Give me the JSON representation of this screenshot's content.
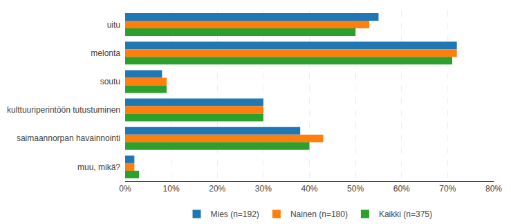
{
  "chart_data": {
    "type": "bar",
    "orientation": "horizontal",
    "categories": [
      "uitu",
      "melonta",
      "soutu",
      "kulttuuriperintöön tutustuminen",
      "saimaannorpan havainnointi",
      "muu, mikä?"
    ],
    "series": [
      {
        "name": "Mies (n=192)",
        "values": [
          55,
          72,
          8,
          30,
          38,
          2
        ]
      },
      {
        "name": "Nainen (n=180)",
        "values": [
          53,
          72,
          9,
          30,
          43,
          2
        ]
      },
      {
        "name": "Kaikki (n=375)",
        "values": [
          50,
          71,
          9,
          30,
          40,
          3
        ]
      }
    ],
    "xlim": [
      0,
      80
    ],
    "xticks": [
      {
        "value": 0,
        "label": "0%"
      },
      {
        "value": 10,
        "label": "10%"
      },
      {
        "value": 20,
        "label": "20%"
      },
      {
        "value": 30,
        "label": "30%"
      },
      {
        "value": 40,
        "label": "40%"
      },
      {
        "value": 50,
        "label": "50%"
      },
      {
        "value": 60,
        "label": "60%"
      },
      {
        "value": 70,
        "label": "70%"
      },
      {
        "value": 80,
        "label": "80%"
      }
    ],
    "grid": true,
    "legend": "bottom"
  }
}
